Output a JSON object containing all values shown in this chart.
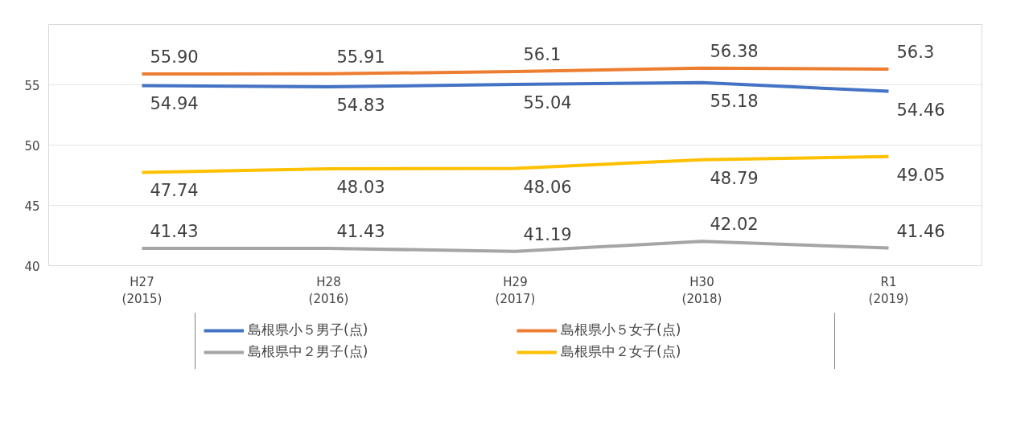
{
  "chart_data": {
    "type": "line",
    "categories": [
      "H27\n(2015)",
      "H28\n(2016)",
      "H29\n(2017)",
      "H30\n(2018)",
      "R1\n(2019)"
    ],
    "series": [
      {
        "name": "島根県小５男子(点)",
        "color": "#4472c4",
        "values": [
          54.94,
          54.83,
          55.04,
          55.18,
          54.46
        ],
        "value_labels": [
          "54.94",
          "54.83",
          "55.04",
          "55.18",
          "54.46"
        ]
      },
      {
        "name": "島根県小５女子(点)",
        "color": "#ed7d31",
        "values": [
          55.9,
          55.91,
          56.1,
          56.38,
          56.3
        ],
        "value_labels": [
          "55.90",
          "55.91",
          "56.1",
          "56.38",
          "56.3"
        ]
      },
      {
        "name": "島根県中２男子(点)",
        "color": "#a5a5a5",
        "values": [
          41.43,
          41.43,
          41.19,
          42.02,
          41.46
        ],
        "value_labels": [
          "41.43",
          "41.43",
          "41.19",
          "42.02",
          "41.46"
        ]
      },
      {
        "name": "島根県中２女子(点)",
        "color": "#ffc000",
        "values": [
          47.74,
          48.03,
          48.06,
          48.79,
          49.05
        ],
        "value_labels": [
          "47.74",
          "48.03",
          "48.06",
          "48.79",
          "49.05"
        ]
      }
    ],
    "ylim": [
      40,
      60
    ],
    "yticks": [
      40,
      45,
      50,
      55
    ],
    "grid": "y",
    "legend": "bottom",
    "marker": "none",
    "line_style": "solid"
  }
}
